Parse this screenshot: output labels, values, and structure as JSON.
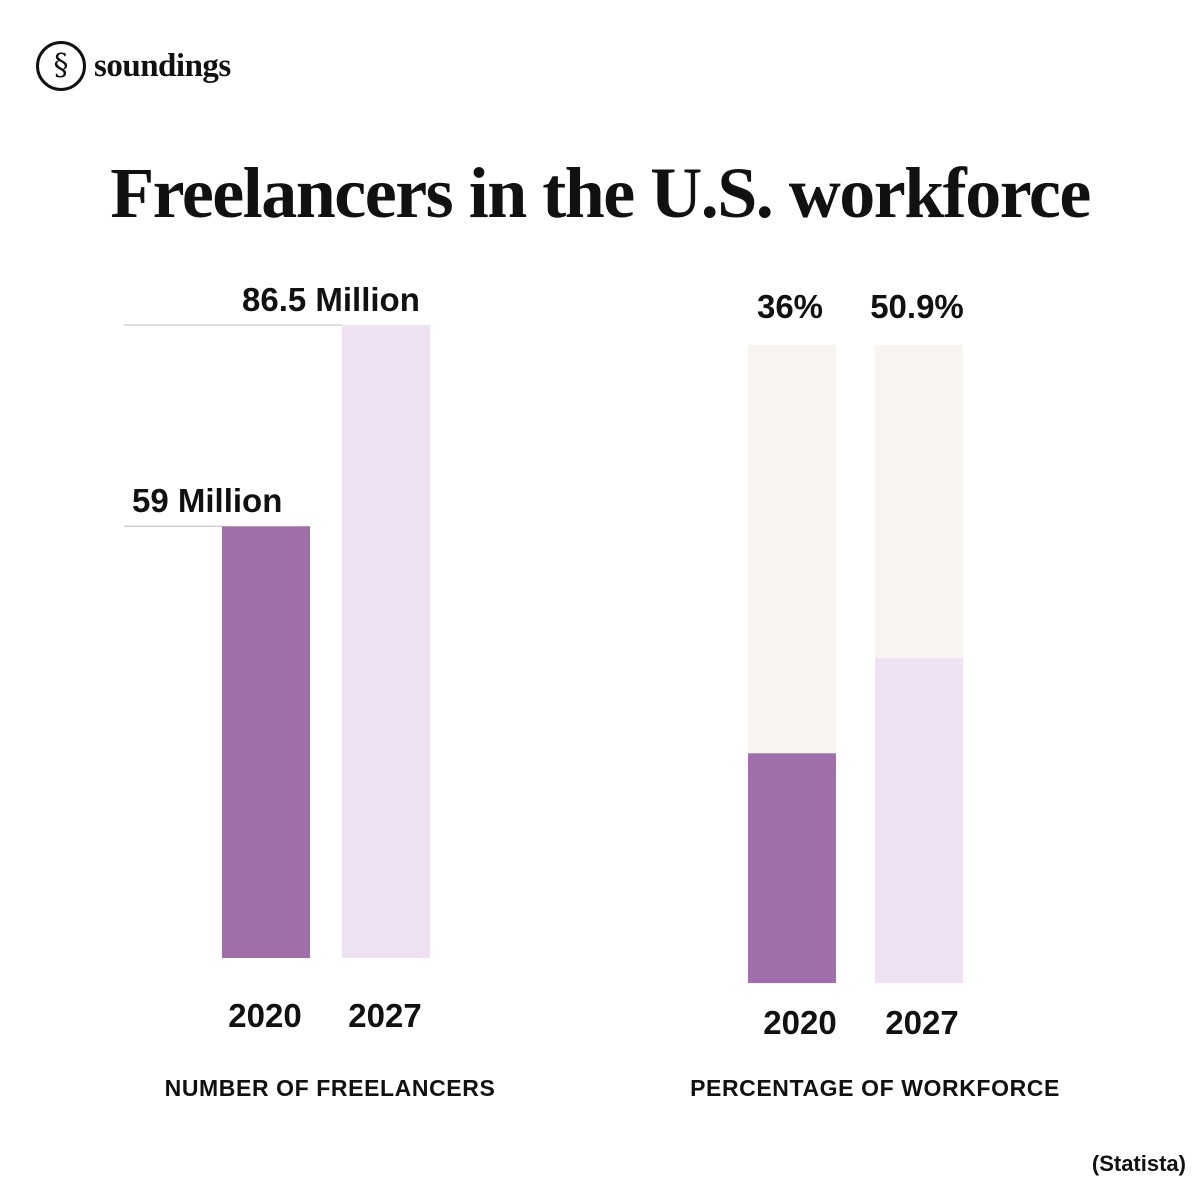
{
  "brand": {
    "name": "soundings",
    "icon": "section-sign-logo-icon"
  },
  "title": "Freelancers in the U.S. workforce",
  "source": "(Statista)",
  "colors": {
    "bar_2020": "#a06eaa",
    "bar_2027": "#eee1f4",
    "track": "#f8f4f2",
    "text": "#111111",
    "leader": "#bbbbbb"
  },
  "chart_data": [
    {
      "type": "bar",
      "title": "",
      "xlabel": "NUMBER OF FREELANCERS",
      "ylabel": "",
      "categories": [
        "2020",
        "2027"
      ],
      "values": [
        59,
        86.5
      ],
      "unit": "Million",
      "data_labels": [
        "59 Million",
        "86.5 Million"
      ],
      "ylim": [
        0,
        86.5
      ],
      "grid": false,
      "legend": "none"
    },
    {
      "type": "bar",
      "title": "",
      "xlabel": "PERCENTAGE OF WORKFORCE",
      "ylabel": "",
      "categories": [
        "2020",
        "2027"
      ],
      "values": [
        36,
        50.9
      ],
      "unit": "%",
      "data_labels": [
        "36%",
        "50.9%"
      ],
      "ylim": [
        0,
        100
      ],
      "grid": false,
      "legend": "none"
    }
  ]
}
